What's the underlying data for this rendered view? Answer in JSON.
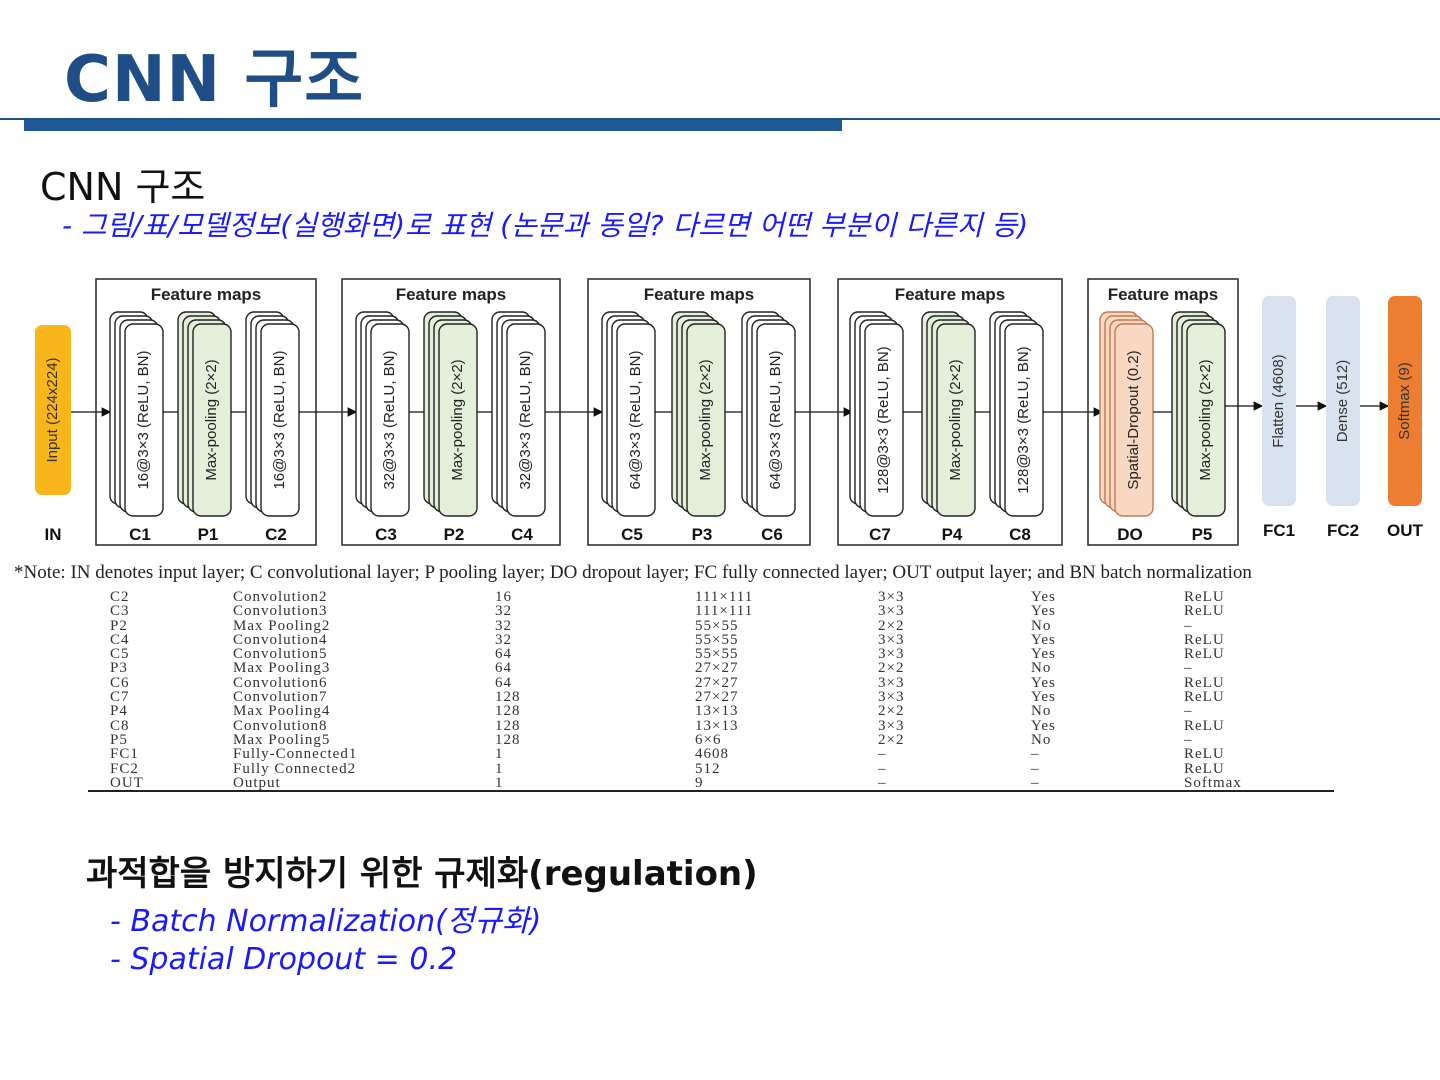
{
  "slide": {
    "title": "CNN 구조",
    "section_title": "CNN 구조",
    "subtitle": "- 그림/표/모델정보(실행화면)로 표현 (논문과 동일? 다르면 어떤 부분이 다른지 등)"
  },
  "diagram": {
    "group_header": "Feature maps",
    "input_label": "Input (224x224)",
    "input_tag": "IN",
    "groups": [
      {
        "stacks": [
          {
            "text": "16@3×3 (ReLU, BN)",
            "tag": "C1",
            "kind": "conv"
          },
          {
            "text": "Max-pooling (2×2)",
            "tag": "P1",
            "kind": "pool"
          },
          {
            "text": "16@3×3 (ReLU, BN)",
            "tag": "C2",
            "kind": "conv"
          }
        ]
      },
      {
        "stacks": [
          {
            "text": "32@3×3 (ReLU, BN)",
            "tag": "C3",
            "kind": "conv"
          },
          {
            "text": "Max-pooling (2×2)",
            "tag": "P2",
            "kind": "pool"
          },
          {
            "text": "32@3×3 (ReLU, BN)",
            "tag": "C4",
            "kind": "conv"
          }
        ]
      },
      {
        "stacks": [
          {
            "text": "64@3×3 (ReLU, BN)",
            "tag": "C5",
            "kind": "conv"
          },
          {
            "text": "Max-pooling (2×2)",
            "tag": "P3",
            "kind": "pool"
          },
          {
            "text": "64@3×3 (ReLU, BN)",
            "tag": "C6",
            "kind": "conv"
          }
        ]
      },
      {
        "stacks": [
          {
            "text": "128@3×3 (ReLU, BN)",
            "tag": "C7",
            "kind": "conv"
          },
          {
            "text": "Max-pooling (2×2)",
            "tag": "P4",
            "kind": "pool"
          },
          {
            "text": "128@3×3 (ReLU, BN)",
            "tag": "C8",
            "kind": "conv"
          }
        ]
      },
      {
        "stacks": [
          {
            "text": "Spatial-Dropout (0.2)",
            "tag": "DO",
            "kind": "dropout"
          },
          {
            "text": "Max-pooling (2×2)",
            "tag": "P5",
            "kind": "pool"
          }
        ]
      }
    ],
    "dense": [
      {
        "text": "Flatten (4608)",
        "tag": "FC1",
        "kind": "dense"
      },
      {
        "text": "Dense (512)",
        "tag": "FC2",
        "kind": "dense"
      },
      {
        "text": "Softmax (9)",
        "tag": "OUT",
        "kind": "softmax"
      }
    ],
    "colors": {
      "input": "#f8b61b",
      "conv": "#ffffff",
      "pool": "#e4efda",
      "dropout": "#f8d8c2",
      "dense": "#d9e2f1",
      "softmax": "#ed7d31"
    }
  },
  "note": "*Note: IN denotes input layer; C convolutional layer; P pooling layer; DO dropout layer; FC fully connected layer; OUT output layer; and BN batch normalization",
  "table_rows": [
    [
      "C2",
      "Convolution2",
      "16",
      "111×111",
      "3×3",
      "Yes",
      "ReLU"
    ],
    [
      "C3",
      "Convolution3",
      "32",
      "111×111",
      "3×3",
      "Yes",
      "ReLU"
    ],
    [
      "P2",
      "Max Pooling2",
      "32",
      "55×55",
      "2×2",
      "No",
      "–"
    ],
    [
      "C4",
      "Convolution4",
      "32",
      "55×55",
      "3×3",
      "Yes",
      "ReLU"
    ],
    [
      "C5",
      "Convolution5",
      "64",
      "55×55",
      "3×3",
      "Yes",
      "ReLU"
    ],
    [
      "P3",
      "Max Pooling3",
      "64",
      "27×27",
      "2×2",
      "No",
      "–"
    ],
    [
      "C6",
      "Convolution6",
      "64",
      "27×27",
      "3×3",
      "Yes",
      "ReLU"
    ],
    [
      "C7",
      "Convolution7",
      "128",
      "27×27",
      "3×3",
      "Yes",
      "ReLU"
    ],
    [
      "P4",
      "Max Pooling4",
      "128",
      "13×13",
      "2×2",
      "No",
      "–"
    ],
    [
      "C8",
      "Convolution8",
      "128",
      "13×13",
      "3×3",
      "Yes",
      "ReLU"
    ],
    [
      "P5",
      "Max Pooling5",
      "128",
      "6×6",
      "2×2",
      "No",
      "–"
    ],
    [
      "FC1",
      "Fully-Connected1",
      "1",
      "4608",
      "–",
      "–",
      "ReLU"
    ],
    [
      "FC2",
      "Fully Connected2",
      "1",
      "512",
      "–",
      "–",
      "ReLU"
    ],
    [
      "OUT",
      "Output",
      "1",
      "9",
      "–",
      "–",
      "Softmax"
    ]
  ],
  "regularization": {
    "title": "과적합을 방지하기 위한 규제화(regulation)",
    "bullets": [
      "- Batch Normalization(정규화)",
      "- Spatial Dropout = 0.2"
    ]
  }
}
